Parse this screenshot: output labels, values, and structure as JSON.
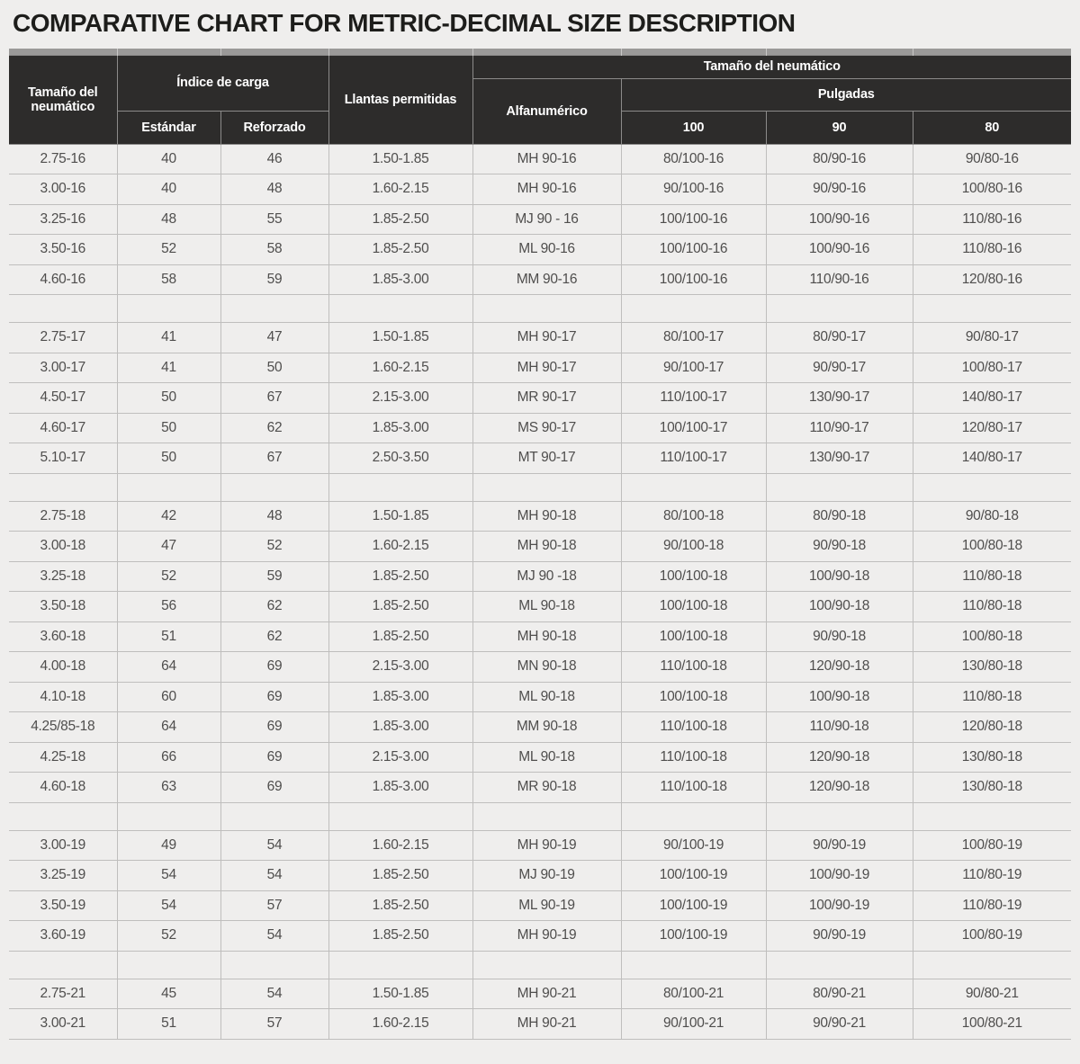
{
  "page": {
    "title": "COMPARATIVE CHART FOR METRIC-DECIMAL SIZE DESCRIPTION"
  },
  "colors": {
    "page_bg": "#efeeed",
    "header_bg": "#2d2c2b",
    "header_text": "#ffffff",
    "header_border": "#8c8b8a",
    "top_strip": "#9b9a99",
    "strip_divider": "#c9c8c7",
    "body_border": "#bfbebd",
    "body_text": "#4f4e4d",
    "title_text": "#1d1d1b"
  },
  "chart_data": {
    "type": "table",
    "title": "COMPARATIVE CHART FOR METRIC-DECIMAL SIZE DESCRIPTION",
    "header": {
      "tire_size": "Tamaño del neumático",
      "load_index": "Índice de carga",
      "standard": "Estándar",
      "reinforced": "Reforzado",
      "rims_allowed": "Llantas permitidas",
      "tire_size_group": "Tamaño del neumático",
      "alphanumeric": "Alfanumérico",
      "inches": "Pulgadas",
      "inches_100": "100",
      "inches_90": "90",
      "inches_80": "80"
    },
    "columns": [
      "Tamaño del neumático",
      "Estándar",
      "Reforzado",
      "Llantas permitidas",
      "Alfanumérico",
      "100",
      "90",
      "80"
    ],
    "groups": [
      [
        [
          "2.75-16",
          "40",
          "46",
          "1.50-1.85",
          "MH 90-16",
          "80/100-16",
          "80/90-16",
          "90/80-16"
        ],
        [
          "3.00-16",
          "40",
          "48",
          "1.60-2.15",
          "MH 90-16",
          "90/100-16",
          "90/90-16",
          "100/80-16"
        ],
        [
          "3.25-16",
          "48",
          "55",
          "1.85-2.50",
          "MJ 90 - 16",
          "100/100-16",
          "100/90-16",
          "110/80-16"
        ],
        [
          "3.50-16",
          "52",
          "58",
          "1.85-2.50",
          "ML 90-16",
          "100/100-16",
          "100/90-16",
          "110/80-16"
        ],
        [
          "4.60-16",
          "58",
          "59",
          "1.85-3.00",
          "MM 90-16",
          "100/100-16",
          "110/90-16",
          "120/80-16"
        ]
      ],
      [
        [
          "2.75-17",
          "41",
          "47",
          "1.50-1.85",
          "MH 90-17",
          "80/100-17",
          "80/90-17",
          "90/80-17"
        ],
        [
          "3.00-17",
          "41",
          "50",
          "1.60-2.15",
          "MH 90-17",
          "90/100-17",
          "90/90-17",
          "100/80-17"
        ],
        [
          "4.50-17",
          "50",
          "67",
          "2.15-3.00",
          "MR 90-17",
          "110/100-17",
          "130/90-17",
          "140/80-17"
        ],
        [
          "4.60-17",
          "50",
          "62",
          "1.85-3.00",
          "MS 90-17",
          "100/100-17",
          "110/90-17",
          "120/80-17"
        ],
        [
          "5.10-17",
          "50",
          "67",
          "2.50-3.50",
          "MT 90-17",
          "110/100-17",
          "130/90-17",
          "140/80-17"
        ]
      ],
      [
        [
          "2.75-18",
          "42",
          "48",
          "1.50-1.85",
          "MH 90-18",
          "80/100-18",
          "80/90-18",
          "90/80-18"
        ],
        [
          "3.00-18",
          "47",
          "52",
          "1.60-2.15",
          "MH 90-18",
          "90/100-18",
          "90/90-18",
          "100/80-18"
        ],
        [
          "3.25-18",
          "52",
          "59",
          "1.85-2.50",
          "MJ 90 -18",
          "100/100-18",
          "100/90-18",
          "110/80-18"
        ],
        [
          "3.50-18",
          "56",
          "62",
          "1.85-2.50",
          "ML 90-18",
          "100/100-18",
          "100/90-18",
          "110/80-18"
        ],
        [
          "3.60-18",
          "51",
          "62",
          "1.85-2.50",
          "MH 90-18",
          "100/100-18",
          "90/90-18",
          "100/80-18"
        ],
        [
          "4.00-18",
          "64",
          "69",
          "2.15-3.00",
          "MN 90-18",
          "110/100-18",
          "120/90-18",
          "130/80-18"
        ],
        [
          "4.10-18",
          "60",
          "69",
          "1.85-3.00",
          "ML 90-18",
          "100/100-18",
          "100/90-18",
          "110/80-18"
        ],
        [
          "4.25/85-18",
          "64",
          "69",
          "1.85-3.00",
          "MM 90-18",
          "110/100-18",
          "110/90-18",
          "120/80-18"
        ],
        [
          "4.25-18",
          "66",
          "69",
          "2.15-3.00",
          "ML 90-18",
          "110/100-18",
          "120/90-18",
          "130/80-18"
        ],
        [
          "4.60-18",
          "63",
          "69",
          "1.85-3.00",
          "MR 90-18",
          "110/100-18",
          "120/90-18",
          "130/80-18"
        ]
      ],
      [
        [
          "3.00-19",
          "49",
          "54",
          "1.60-2.15",
          "MH 90-19",
          "90/100-19",
          "90/90-19",
          "100/80-19"
        ],
        [
          "3.25-19",
          "54",
          "54",
          "1.85-2.50",
          "MJ 90-19",
          "100/100-19",
          "100/90-19",
          "110/80-19"
        ],
        [
          "3.50-19",
          "54",
          "57",
          "1.85-2.50",
          "ML 90-19",
          "100/100-19",
          "100/90-19",
          "110/80-19"
        ],
        [
          "3.60-19",
          "52",
          "54",
          "1.85-2.50",
          "MH 90-19",
          "100/100-19",
          "90/90-19",
          "100/80-19"
        ]
      ],
      [
        [
          "2.75-21",
          "45",
          "54",
          "1.50-1.85",
          "MH 90-21",
          "80/100-21",
          "80/90-21",
          "90/80-21"
        ],
        [
          "3.00-21",
          "51",
          "57",
          "1.60-2.15",
          "MH 90-21",
          "90/100-21",
          "90/90-21",
          "100/80-21"
        ]
      ]
    ]
  }
}
